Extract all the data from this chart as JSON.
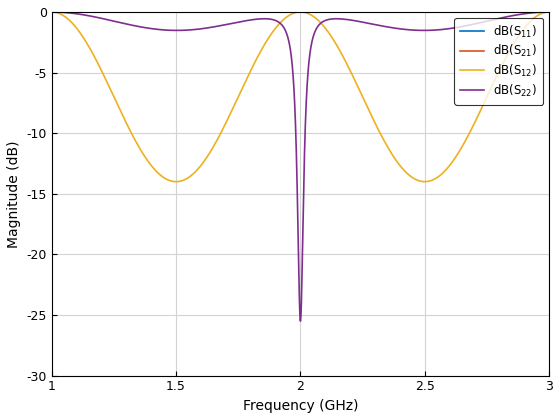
{
  "freq_start": 1.0,
  "freq_stop": 3.0,
  "freq_points": 5000,
  "xlabel": "Frequency (GHz)",
  "ylabel": "Magnitude (dB)",
  "xlim": [
    1,
    3
  ],
  "ylim": [
    -30,
    0
  ],
  "yticks": [
    0,
    -5,
    -10,
    -15,
    -20,
    -25,
    -30
  ],
  "xticks": [
    1.0,
    1.5,
    2.0,
    2.5,
    3.0
  ],
  "colors": [
    "#0072bd",
    "#d95319",
    "#edb120",
    "#7e2f8e"
  ],
  "linewidth": 1.2,
  "f0": 2.0,
  "s12_min_dB": -14.0,
  "notch_depth_s22": 25.5,
  "notch_bw": 0.03,
  "background_color": "#ffffff",
  "axes_bg": "#ffffff",
  "legend_fontsize": 8.5,
  "axis_fontsize": 10,
  "tick_fontsize": 9,
  "grid_color": "#d3d3d3",
  "spine_color": "#000000"
}
